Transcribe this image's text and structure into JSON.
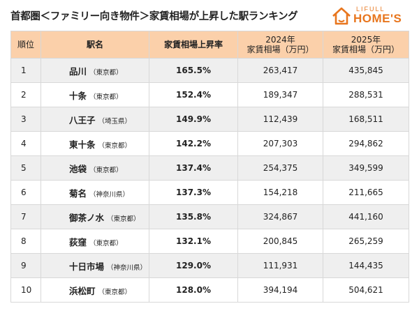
{
  "header": {
    "title": "首都圏＜ファミリー向き物件＞家賃相場が上昇した駅ランキング",
    "logo_small": "LIFULL",
    "logo_big": "HOME'S"
  },
  "table": {
    "columns": [
      [
        "順位"
      ],
      [
        "駅名"
      ],
      [
        "家賃相場上昇率"
      ],
      [
        "2024年",
        "家賃相場（万円）"
      ],
      [
        "2025年",
        "家賃相場（万円）"
      ]
    ],
    "rows": [
      [
        "1",
        "品川",
        "（東京都）",
        "165.5%",
        "263,417",
        "435,845"
      ],
      [
        "2",
        "十条",
        "（東京都）",
        "152.4%",
        "189,347",
        "288,531"
      ],
      [
        "3",
        "八王子",
        "（埼玉県）",
        "149.9%",
        "112,439",
        "168,511"
      ],
      [
        "4",
        "東十条",
        "（東京都）",
        "142.2%",
        "207,303",
        "294,862"
      ],
      [
        "5",
        "池袋",
        "（東京都）",
        "137.4%",
        "254,375",
        "349,599"
      ],
      [
        "6",
        "菊名",
        "（神奈川県）",
        "137.3%",
        "154,218",
        "211,665"
      ],
      [
        "7",
        "御茶ノ水",
        "（東京都）",
        "135.8%",
        "324,867",
        "441,160"
      ],
      [
        "8",
        "荻窪",
        "（東京都）",
        "132.1%",
        "200,845",
        "265,259"
      ],
      [
        "9",
        "十日市場",
        "（神奈川県）",
        "129.0%",
        "111,931",
        "144,435"
      ],
      [
        "10",
        "浜松町",
        "（東京都）",
        "128.0%",
        "394,194",
        "504,621"
      ]
    ]
  }
}
